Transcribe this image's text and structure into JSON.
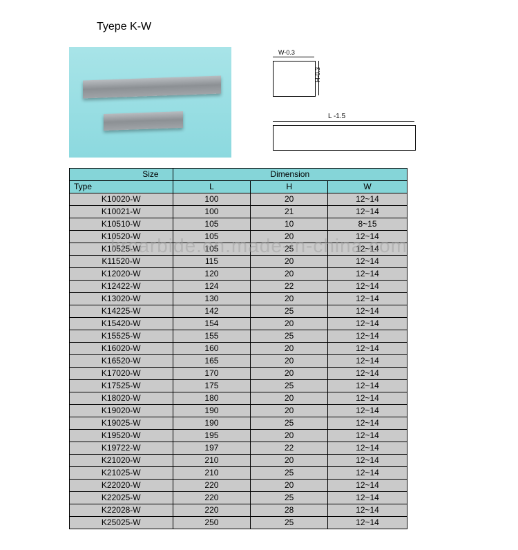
{
  "title": "Tyepe K-W",
  "diagram": {
    "w_label": "W-0.3",
    "h_label": "H-0.3",
    "l_label": "L -1.5"
  },
  "table": {
    "headers": {
      "size": "Size",
      "type": "Type",
      "dimension": "Dimension",
      "L": "L",
      "H": "H",
      "W": "W"
    },
    "colors": {
      "header_bg": "#85d5d8",
      "row_bg": "#cacaca",
      "border": "#000000"
    },
    "rows": [
      {
        "type": "K10020-W",
        "L": "100",
        "H": "20",
        "W": "12~14"
      },
      {
        "type": "K10021-W",
        "L": "100",
        "H": "21",
        "W": "12~14"
      },
      {
        "type": "K10510-W",
        "L": "105",
        "H": "10",
        "W": "8~15"
      },
      {
        "type": "K10520-W",
        "L": "105",
        "H": "20",
        "W": "12~14"
      },
      {
        "type": "K10525-W",
        "L": "105",
        "H": "25",
        "W": "12~14"
      },
      {
        "type": "K11520-W",
        "L": "115",
        "H": "20",
        "W": "12~14"
      },
      {
        "type": "K12020-W",
        "L": "120",
        "H": "20",
        "W": "12~14"
      },
      {
        "type": "K12422-W",
        "L": "124",
        "H": "22",
        "W": "12~14"
      },
      {
        "type": "K13020-W",
        "L": "130",
        "H": "20",
        "W": "12~14"
      },
      {
        "type": "K14225-W",
        "L": "142",
        "H": "25",
        "W": "12~14"
      },
      {
        "type": "K15420-W",
        "L": "154",
        "H": "20",
        "W": "12~14"
      },
      {
        "type": "K15525-W",
        "L": "155",
        "H": "25",
        "W": "12~14"
      },
      {
        "type": "K16020-W",
        "L": "160",
        "H": "20",
        "W": "12~14"
      },
      {
        "type": "K16520-W",
        "L": "165",
        "H": "20",
        "W": "12~14"
      },
      {
        "type": "K17020-W",
        "L": "170",
        "H": "20",
        "W": "12~14"
      },
      {
        "type": "K17525-W",
        "L": "175",
        "H": "25",
        "W": "12~14"
      },
      {
        "type": "K18020-W",
        "L": "180",
        "H": "20",
        "W": "12~14"
      },
      {
        "type": "K19020-W",
        "L": "190",
        "H": "20",
        "W": "12~14"
      },
      {
        "type": "K19025-W",
        "L": "190",
        "H": "25",
        "W": "12~14"
      },
      {
        "type": "K19520-W",
        "L": "195",
        "H": "20",
        "W": "12~14"
      },
      {
        "type": "K19722-W",
        "L": "197",
        "H": "22",
        "W": "12~14"
      },
      {
        "type": "K21020-W",
        "L": "210",
        "H": "20",
        "W": "12~14"
      },
      {
        "type": "K21025-W",
        "L": "210",
        "H": "25",
        "W": "12~14"
      },
      {
        "type": "K22020-W",
        "L": "220",
        "H": "20",
        "W": "12~14"
      },
      {
        "type": "K22025-W",
        "L": "220",
        "H": "25",
        "W": "12~14"
      },
      {
        "type": "K22028-W",
        "L": "220",
        "H": "28",
        "W": "12~14"
      },
      {
        "type": "K25025-W",
        "L": "250",
        "H": "25",
        "W": "12~14"
      }
    ]
  },
  "watermark": "krcarbide.en.made-in-china.com"
}
